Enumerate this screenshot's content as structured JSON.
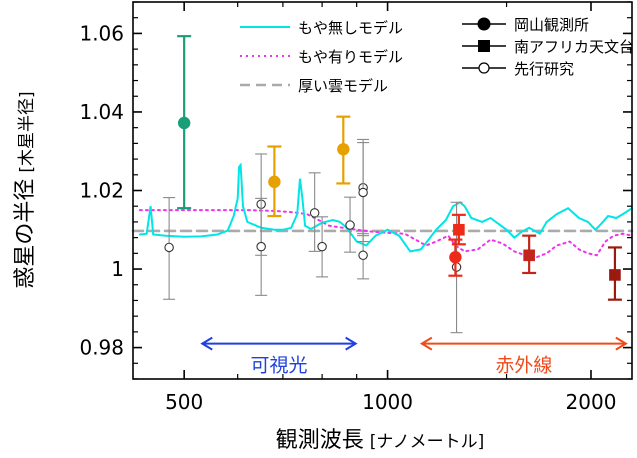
{
  "chart_data": {
    "type": "scatter",
    "xlabel": "観測波長",
    "xunit": "[ナノメートル]",
    "ylabel": "惑星の半径",
    "yunit": "[木星半径]",
    "xscale": "log",
    "xlim": [
      420,
      2300
    ],
    "ylim": [
      0.972,
      1.068
    ],
    "xticks": [
      500,
      1000,
      2000
    ],
    "xtick_labels": [
      "500",
      "1000",
      "2000"
    ],
    "yticks": [
      0.98,
      1.0,
      1.02,
      1.04,
      1.06
    ],
    "ytick_labels": [
      "0.98",
      "1",
      "1.02",
      "1.04",
      "1.06"
    ],
    "models": [
      {
        "name": "もや無しモデル",
        "color": "#00e5e5",
        "style": "solid",
        "points": [
          [
            430,
            1.0088
          ],
          [
            440,
            1.009
          ],
          [
            446,
            1.016
          ],
          [
            450,
            1.0088
          ],
          [
            470,
            1.0085
          ],
          [
            500,
            1.0082
          ],
          [
            530,
            1.0083
          ],
          [
            560,
            1.0088
          ],
          [
            580,
            1.0098
          ],
          [
            592,
            1.0135
          ],
          [
            600,
            1.018
          ],
          [
            603,
            1.026
          ],
          [
            606,
            1.0265
          ],
          [
            611,
            1.016
          ],
          [
            620,
            1.012
          ],
          [
            650,
            1.0105
          ],
          [
            680,
            1.01
          ],
          [
            700,
            1.01
          ],
          [
            720,
            1.0105
          ],
          [
            735,
            1.014
          ],
          [
            742,
            1.023
          ],
          [
            748,
            1.018
          ],
          [
            755,
            1.011
          ],
          [
            770,
            1.0102
          ],
          [
            800,
            1.0118
          ],
          [
            830,
            1.0125
          ],
          [
            850,
            1.012
          ],
          [
            870,
            1.0105
          ],
          [
            900,
            1.007
          ],
          [
            930,
            1.006
          ],
          [
            960,
            1.0085
          ],
          [
            1000,
            1.01
          ],
          [
            1040,
            1.0085
          ],
          [
            1080,
            1.0045
          ],
          [
            1120,
            1.005
          ],
          [
            1150,
            1.0075
          ],
          [
            1180,
            1.01
          ],
          [
            1220,
            1.0125
          ],
          [
            1250,
            1.016
          ],
          [
            1280,
            1.017
          ],
          [
            1300,
            1.016
          ],
          [
            1330,
            1.013
          ],
          [
            1380,
            1.012
          ],
          [
            1420,
            1.013
          ],
          [
            1460,
            1.0115
          ],
          [
            1500,
            1.01
          ],
          [
            1540,
            1.008
          ],
          [
            1580,
            1.0095
          ],
          [
            1620,
            1.0105
          ],
          [
            1680,
            1.009
          ],
          [
            1720,
            1.012
          ],
          [
            1780,
            1.014
          ],
          [
            1850,
            1.0155
          ],
          [
            1920,
            1.013
          ],
          [
            1980,
            1.012
          ],
          [
            2030,
            1.01
          ],
          [
            2070,
            1.0115
          ],
          [
            2120,
            1.0135
          ],
          [
            2180,
            1.013
          ],
          [
            2230,
            1.014
          ],
          [
            2300,
            1.0155
          ]
        ]
      },
      {
        "name": "もや有りモデル",
        "color": "#ee33ee",
        "style": "dotted",
        "points": [
          [
            430,
            1.015
          ],
          [
            500,
            1.015
          ],
          [
            560,
            1.015
          ],
          [
            620,
            1.015
          ],
          [
            680,
            1.0148
          ],
          [
            720,
            1.0145
          ],
          [
            760,
            1.014
          ],
          [
            790,
            1.0125
          ],
          [
            820,
            1.011
          ],
          [
            860,
            1.0105
          ],
          [
            900,
            1.01
          ],
          [
            950,
            1.0095
          ],
          [
            1000,
            1.0092
          ],
          [
            1060,
            1.009
          ],
          [
            1100,
            1.0075
          ],
          [
            1140,
            1.006
          ],
          [
            1180,
            1.007
          ],
          [
            1230,
            1.0085
          ],
          [
            1260,
            1.006
          ],
          [
            1300,
            1.0045
          ],
          [
            1360,
            1.005
          ],
          [
            1420,
            1.0075
          ],
          [
            1480,
            1.0065
          ],
          [
            1540,
            1.0045
          ],
          [
            1600,
            1.0035
          ],
          [
            1660,
            1.003
          ],
          [
            1720,
            1.004
          ],
          [
            1780,
            1.006
          ],
          [
            1860,
            1.007
          ],
          [
            1920,
            1.005
          ],
          [
            1980,
            1.004
          ],
          [
            2040,
            1.0035
          ],
          [
            2100,
            1.007
          ],
          [
            2160,
            1.0085
          ],
          [
            2230,
            1.009
          ],
          [
            2300,
            1.0085
          ]
        ]
      },
      {
        "name": "厚い雲モデル",
        "color": "#aaaaaa",
        "style": "dashed",
        "points": [
          [
            420,
            1.0097
          ],
          [
            2300,
            1.0097
          ]
        ]
      }
    ],
    "observations": [
      {
        "name": "岡山観測所",
        "marker": "circle-filled",
        "points": [
          {
            "x": 500,
            "y": 1.0372,
            "err_lo": 1.0155,
            "err_hi": 1.0593,
            "color": "#1a9e77"
          },
          {
            "x": 680,
            "y": 1.0222,
            "err_lo": 1.0135,
            "err_hi": 1.0312,
            "color": "#e6a000"
          },
          {
            "x": 860,
            "y": 1.0305,
            "err_lo": 1.0218,
            "err_hi": 1.0388,
            "color": "#e6a000"
          },
          {
            "x": 1260,
            "y": 1.003,
            "err_lo": 0.9983,
            "err_hi": 1.0075,
            "color": "#ee2a1a"
          }
        ]
      },
      {
        "name": "南アフリカ天文台",
        "marker": "square-filled",
        "points": [
          {
            "x": 1275,
            "y": 1.01,
            "err_lo": 1.0063,
            "err_hi": 1.0138,
            "color": "#ee2a1a"
          },
          {
            "x": 1620,
            "y": 1.0035,
            "err_lo": 0.999,
            "err_hi": 1.0085,
            "color": "#c4251a"
          },
          {
            "x": 2170,
            "y": 0.9985,
            "err_lo": 0.9922,
            "err_hi": 1.0055,
            "color": "#9b1a10"
          }
        ]
      },
      {
        "name": "先行研究",
        "marker": "circle-open",
        "points": [
          {
            "x": 475,
            "y": 1.0055,
            "err_lo": 0.9923,
            "err_hi": 1.0182
          },
          {
            "x": 650,
            "y": 1.0165,
            "err_lo": 1.0035,
            "err_hi": 1.0293
          },
          {
            "x": 650,
            "y": 1.0057,
            "err_lo": 0.9933,
            "err_hi": 1.018
          },
          {
            "x": 780,
            "y": 1.0143,
            "err_lo": 1.0045,
            "err_hi": 1.0245
          },
          {
            "x": 800,
            "y": 1.0057,
            "err_lo": 0.998,
            "err_hi": 1.0133
          },
          {
            "x": 880,
            "y": 1.0112,
            "err_lo": 1.0043,
            "err_hi": 1.0183
          },
          {
            "x": 920,
            "y": 1.0207,
            "err_lo": 1.0085,
            "err_hi": 1.033
          },
          {
            "x": 920,
            "y": 1.0195,
            "err_lo": 1.007,
            "err_hi": 1.0322
          },
          {
            "x": 920,
            "y": 1.0035,
            "err_lo": 0.9975,
            "err_hi": 1.009
          },
          {
            "x": 1265,
            "y": 1.0005,
            "err_lo": 0.9838,
            "err_hi": 1.017
          }
        ]
      }
    ],
    "bands": [
      {
        "label": "可視光",
        "x_start": 530,
        "x_end": 900,
        "y": 0.981,
        "color": "#1f3fe0"
      },
      {
        "label": "赤外線",
        "x_start": 1120,
        "x_end": 2260,
        "y": 0.981,
        "color": "#f04a1a"
      }
    ],
    "legend": {
      "placement": "top",
      "line_entries": [
        {
          "label": "もや無しモデル",
          "color": "#00e5e5",
          "style": "solid"
        },
        {
          "label": "もや有りモデル",
          "color": "#ee33ee",
          "style": "dotted"
        },
        {
          "label": "厚い雲モデル",
          "color": "#aaaaaa",
          "style": "dashed"
        }
      ],
      "marker_entries": [
        {
          "label": "岡山観測所",
          "marker": "circle-filled"
        },
        {
          "label": "南アフリカ天文台",
          "marker": "square-filled"
        },
        {
          "label": "先行研究",
          "marker": "circle-open"
        }
      ]
    },
    "grid": false
  }
}
